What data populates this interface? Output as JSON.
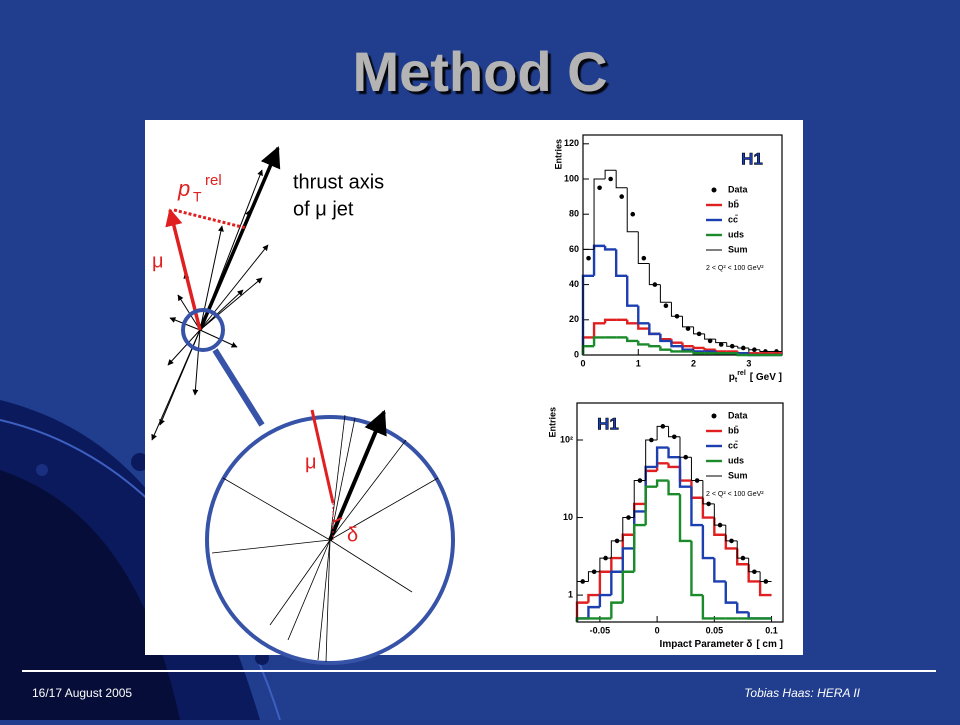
{
  "slide": {
    "title": "Method C",
    "footer_left": "16/17 August 2005",
    "footer_right": "Tobias Haas: HERA II"
  },
  "diagram": {
    "ptrel_p": "p",
    "ptrel_sub": "T",
    "ptrel_sup": "rel",
    "axis_line1": "thrust axis",
    "axis_line2": "of μ jet",
    "mu_label": "μ",
    "mu_zoom_label": "μ",
    "delta_label": "δ"
  },
  "chart_data": [
    {
      "type": "histogram",
      "ylabel": "Entries",
      "xlabel": {
        "symbol": "p",
        "sub": "t",
        "sup": "rel",
        "unit": "[ GeV ]"
      },
      "tag": "H1",
      "annotation": "2 < Q² < 100 GeV²",
      "log_y": false,
      "xlim": [
        0,
        3.6
      ],
      "xticks": [
        0,
        1,
        2,
        3
      ],
      "ylim": [
        0,
        125
      ],
      "yticks": [
        0,
        20,
        40,
        60,
        80,
        100,
        120
      ],
      "bins": [
        0,
        0.2,
        0.4,
        0.6,
        0.8,
        1.0,
        1.2,
        1.4,
        1.6,
        1.8,
        2.0,
        2.2,
        2.4,
        2.6,
        2.8,
        3.0,
        3.2,
        3.4,
        3.6
      ],
      "series": [
        {
          "name": "Data",
          "color": "#000000",
          "style": "points",
          "values": [
            55,
            95,
            100,
            90,
            80,
            55,
            40,
            28,
            22,
            15,
            12,
            8,
            6,
            5,
            4,
            3,
            2,
            2
          ]
        },
        {
          "name": "bb̄",
          "color": "#e02020",
          "style": "step",
          "values": [
            10,
            18,
            20,
            20,
            18,
            15,
            12,
            9,
            7,
            5,
            4,
            3,
            2,
            2,
            1,
            1,
            1,
            1
          ]
        },
        {
          "name": "cc̄",
          "color": "#1c3fb0",
          "style": "step",
          "values": [
            45,
            62,
            60,
            45,
            28,
            18,
            12,
            8,
            5,
            3,
            2,
            2,
            1,
            1,
            1,
            0,
            0,
            0
          ]
        },
        {
          "name": "uds",
          "color": "#1a8a2a",
          "style": "step",
          "values": [
            5,
            10,
            10,
            10,
            8,
            6,
            5,
            3,
            2,
            2,
            1,
            1,
            1,
            1,
            0,
            0,
            0,
            0
          ]
        },
        {
          "name": "Sum",
          "color": "#000000",
          "style": "step",
          "values": [
            60,
            100,
            105,
            95,
            70,
            52,
            40,
            30,
            22,
            16,
            12,
            9,
            7,
            5,
            4,
            3,
            2,
            2
          ]
        }
      ]
    },
    {
      "type": "histogram",
      "ylabel": "Entries",
      "xlabel": {
        "symbol": "Impact Parameter δ",
        "sub": "",
        "sup": "",
        "unit": "[ cm ]"
      },
      "tag": "H1",
      "annotation": "2 < Q² < 100 GeV²",
      "log_y": true,
      "xlim": [
        -0.07,
        0.11
      ],
      "xticks": [
        -0.05,
        0,
        0.05,
        0.1
      ],
      "ylim": [
        0.45,
        300
      ],
      "yticks": [
        1,
        10,
        {
          "value": 100,
          "label": "10²"
        }
      ],
      "bins": [
        -0.07,
        -0.06,
        -0.05,
        -0.04,
        -0.03,
        -0.02,
        -0.01,
        0,
        0.01,
        0.02,
        0.03,
        0.04,
        0.05,
        0.06,
        0.07,
        0.08,
        0.09,
        0.1
      ],
      "series": [
        {
          "name": "Data",
          "color": "#000000",
          "style": "points",
          "values": [
            1.5,
            2,
            3,
            5,
            10,
            30,
            100,
            150,
            110,
            60,
            30,
            15,
            8,
            5,
            3,
            2,
            1.5
          ]
        },
        {
          "name": "bb̄",
          "color": "#e02020",
          "style": "step",
          "values": [
            0.8,
            1,
            2,
            3,
            6,
            15,
            40,
            50,
            45,
            30,
            18,
            10,
            6,
            4,
            2.5,
            1.5,
            1
          ]
        },
        {
          "name": "cc̄",
          "color": "#1c3fb0",
          "style": "step",
          "values": [
            0.5,
            0.7,
            1,
            2,
            4,
            12,
            45,
            80,
            60,
            25,
            8,
            3,
            1.5,
            0.8,
            0.6,
            0.5,
            0.5
          ]
        },
        {
          "name": "uds",
          "color": "#1a8a2a",
          "style": "step",
          "values": [
            0.5,
            0.5,
            0.5,
            0.8,
            2,
            8,
            25,
            30,
            20,
            5,
            1,
            0.5,
            0.5,
            0.5,
            0.5,
            0.5,
            0.5
          ]
        },
        {
          "name": "Sum",
          "color": "#000000",
          "style": "step",
          "values": [
            1.5,
            2,
            3,
            5,
            10,
            30,
            100,
            150,
            110,
            60,
            30,
            15,
            8,
            5,
            3,
            2,
            1.5
          ]
        }
      ]
    }
  ]
}
